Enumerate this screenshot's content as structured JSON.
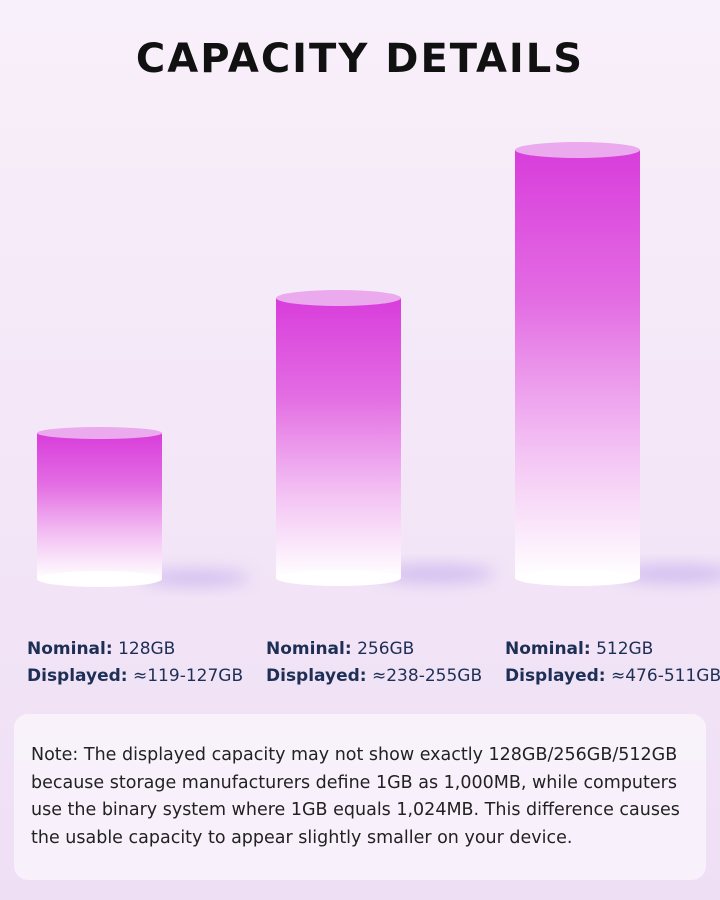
{
  "header": {
    "title": "CAPACITY DETAILS"
  },
  "items": [
    {
      "nominal_label": "Nominal:",
      "nominal": "128GB",
      "displayed_label": "Displayed:",
      "displayed": "≈119-127GB"
    },
    {
      "nominal_label": "Nominal:",
      "nominal": "256GB",
      "displayed_label": "Displayed:",
      "displayed": "≈238-255GB"
    },
    {
      "nominal_label": "Nominal:",
      "nominal": "512GB",
      "displayed_label": "Displayed:",
      "displayed": "≈476-511GB"
    }
  ],
  "note": "Note: The displayed capacity may not show exactly 128GB/256GB/512GB because storage manufacturers define 1GB as 1,000MB, while computers use the binary system where 1GB equals 1,024MB. This difference causes the usable capacity to appear slightly smaller on your device."
}
